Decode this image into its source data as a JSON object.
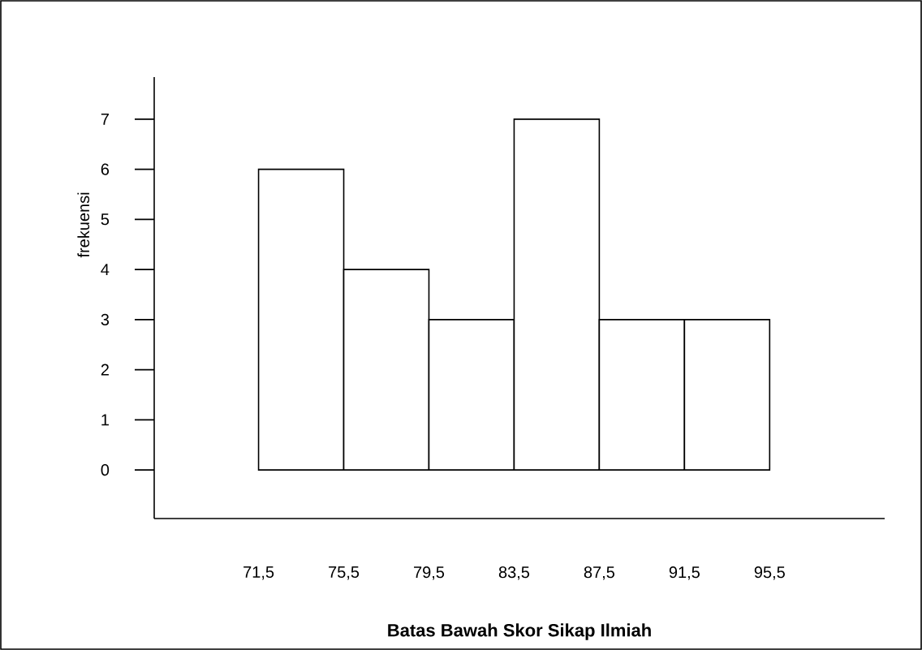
{
  "chart_data": {
    "type": "histogram",
    "xlabel": "Batas Bawah Skor Sikap Ilmiah",
    "ylabel": "frekuensi",
    "bins": [
      71.5,
      75.5,
      79.5,
      83.5,
      87.5,
      91.5,
      95.5
    ],
    "values": [
      6,
      4,
      3,
      7,
      3,
      3
    ],
    "xlim": [
      66.6,
      100.9
    ],
    "ylim": [
      -0.97,
      7.84
    ],
    "xticks": [
      {
        "value": 71.5,
        "label": "71,5"
      },
      {
        "value": 75.5,
        "label": "75,5"
      },
      {
        "value": 79.5,
        "label": "79,5"
      },
      {
        "value": 83.5,
        "label": "83,5"
      },
      {
        "value": 87.5,
        "label": "87,5"
      },
      {
        "value": 91.5,
        "label": "91,5"
      },
      {
        "value": 95.5,
        "label": "95,5"
      }
    ],
    "yticks": [
      0,
      1,
      2,
      3,
      4,
      5,
      6,
      7
    ],
    "grid": false
  }
}
